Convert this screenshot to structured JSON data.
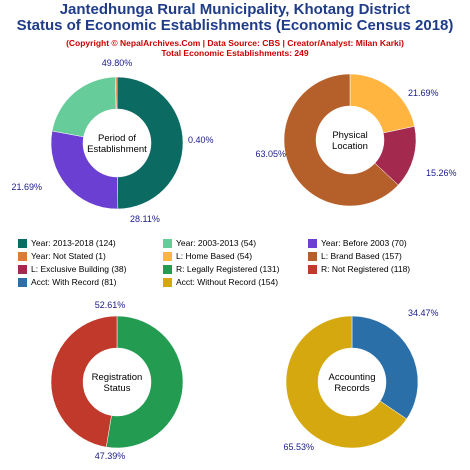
{
  "header": {
    "title_line1": "Jantedhunga Rural Municipality, Khotang District",
    "title_line2": "Status of Economic Establishments (Economic Census 2018)",
    "credit": "(Copyright © NepalArchives.Com | Data Source: CBS | Creator/Analyst: Milan Karki)",
    "total": "Total Economic Establishments: 249"
  },
  "chart_data": [
    {
      "type": "pie",
      "donut": true,
      "center_label": [
        "Period of",
        "Establishment"
      ],
      "slices": [
        {
          "label": "Year: 2013-2018",
          "count": 124,
          "percent": 49.8,
          "percent_label": "49.80%",
          "color": "#0b6b63"
        },
        {
          "label": "Year: Before 2003",
          "count": 70,
          "percent": 28.11,
          "percent_label": "28.11%",
          "color": "#6a3fd1"
        },
        {
          "label": "Year: 2003-2013",
          "count": 54,
          "percent": 21.69,
          "percent_label": "21.69%",
          "color": "#66cc99"
        },
        {
          "label": "Year: Not Stated",
          "count": 1,
          "percent": 0.4,
          "percent_label": "0.40%",
          "color": "#e07a2e"
        }
      ]
    },
    {
      "type": "pie",
      "donut": true,
      "center_label": [
        "Physical",
        "Location"
      ],
      "slices": [
        {
          "label": "L: Home Based",
          "count": 54,
          "percent": 21.69,
          "percent_label": "21.69%",
          "color": "#ffb53f"
        },
        {
          "label": "L: Exclusive Building",
          "count": 38,
          "percent": 15.26,
          "percent_label": "15.26%",
          "color": "#a3294f"
        },
        {
          "label": "L: Brand Based",
          "count": 157,
          "percent": 63.05,
          "percent_label": "63.05%",
          "color": "#b5602b"
        }
      ]
    },
    {
      "type": "pie",
      "donut": true,
      "center_label": [
        "Registration",
        "Status"
      ],
      "slices": [
        {
          "label": "R: Legally Registered",
          "count": 131,
          "percent": 52.61,
          "percent_label": "52.61%",
          "color": "#239b51"
        },
        {
          "label": "R: Not Registered",
          "count": 118,
          "percent": 47.39,
          "percent_label": "47.39%",
          "color": "#c0392b"
        }
      ]
    },
    {
      "type": "pie",
      "donut": true,
      "center_label": [
        "Accounting",
        "Records"
      ],
      "slices": [
        {
          "label": "Acct: With Record",
          "count": 81,
          "percent": 34.47,
          "percent_label": "34.47%",
          "color": "#2a6fa8"
        },
        {
          "label": "Acct: Without Record",
          "count": 154,
          "percent": 65.53,
          "percent_label": "65.53%",
          "color": "#d4a80e"
        }
      ]
    }
  ],
  "legend": [
    {
      "text": "Year: 2013-2018 (124)",
      "color": "#0b6b63"
    },
    {
      "text": "Year: 2003-2013 (54)",
      "color": "#66cc99"
    },
    {
      "text": "Year: Before 2003 (70)",
      "color": "#6a3fd1"
    },
    {
      "text": "Year: Not Stated (1)",
      "color": "#e07a2e"
    },
    {
      "text": "L: Home Based (54)",
      "color": "#ffb53f"
    },
    {
      "text": "L: Brand Based (157)",
      "color": "#b5602b"
    },
    {
      "text": "L: Exclusive Building (38)",
      "color": "#a3294f"
    },
    {
      "text": "R: Legally Registered (131)",
      "color": "#239b51"
    },
    {
      "text": "R: Not Registered (118)",
      "color": "#c0392b"
    },
    {
      "text": "Acct: With Record (81)",
      "color": "#2a6fa8"
    },
    {
      "text": "Acct: Without Record (154)",
      "color": "#d4a80e"
    }
  ]
}
